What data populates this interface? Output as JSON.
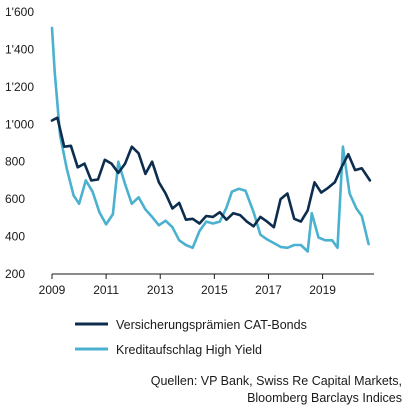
{
  "chart_data": {
    "type": "line",
    "ylim": [
      200,
      1600
    ],
    "xlim": [
      2009.0,
      2020.9
    ],
    "y_ticks": [
      {
        "value": 200,
        "label": "200"
      },
      {
        "value": 400,
        "label": "400"
      },
      {
        "value": 600,
        "label": "600"
      },
      {
        "value": 800,
        "label": "800"
      },
      {
        "value": 1000,
        "label": "1'000"
      },
      {
        "value": 1200,
        "label": "1'200"
      },
      {
        "value": 1400,
        "label": "1'400"
      },
      {
        "value": 1600,
        "label": "1'600"
      }
    ],
    "x_ticks": [
      {
        "value": 2009,
        "label": "2009"
      },
      {
        "value": 2011,
        "label": "2011"
      },
      {
        "value": 2013,
        "label": "2013"
      },
      {
        "value": 2015,
        "label": "2015"
      },
      {
        "value": 2017,
        "label": "2017"
      },
      {
        "value": 2019,
        "label": "2019"
      }
    ],
    "grid": false,
    "legend_position": "bottom",
    "series": [
      {
        "name": "Versicherungsprämien CAT-Bonds",
        "color": "#0d2d4e",
        "points": [
          [
            2009.0,
            1020
          ],
          [
            2009.2,
            1035
          ],
          [
            2009.45,
            880
          ],
          [
            2009.7,
            885
          ],
          [
            2009.95,
            770
          ],
          [
            2010.2,
            790
          ],
          [
            2010.45,
            700
          ],
          [
            2010.7,
            705
          ],
          [
            2010.95,
            810
          ],
          [
            2011.2,
            790
          ],
          [
            2011.45,
            740
          ],
          [
            2011.7,
            790
          ],
          [
            2011.95,
            880
          ],
          [
            2012.2,
            845
          ],
          [
            2012.45,
            735
          ],
          [
            2012.7,
            800
          ],
          [
            2012.95,
            690
          ],
          [
            2013.2,
            630
          ],
          [
            2013.45,
            550
          ],
          [
            2013.7,
            580
          ],
          [
            2013.95,
            490
          ],
          [
            2014.2,
            495
          ],
          [
            2014.45,
            470
          ],
          [
            2014.7,
            510
          ],
          [
            2014.95,
            505
          ],
          [
            2015.2,
            530
          ],
          [
            2015.45,
            490
          ],
          [
            2015.7,
            525
          ],
          [
            2015.95,
            515
          ],
          [
            2016.2,
            480
          ],
          [
            2016.45,
            455
          ],
          [
            2016.7,
            505
          ],
          [
            2016.95,
            480
          ],
          [
            2017.2,
            450
          ],
          [
            2017.45,
            600
          ],
          [
            2017.7,
            630
          ],
          [
            2017.95,
            495
          ],
          [
            2018.2,
            480
          ],
          [
            2018.45,
            540
          ],
          [
            2018.7,
            690
          ],
          [
            2018.95,
            635
          ],
          [
            2019.2,
            660
          ],
          [
            2019.45,
            690
          ],
          [
            2019.7,
            770
          ],
          [
            2019.95,
            840
          ],
          [
            2020.2,
            755
          ],
          [
            2020.45,
            765
          ],
          [
            2020.75,
            700
          ]
        ]
      },
      {
        "name": "Kreditaufschlag High Yield",
        "color": "#4ab1cf",
        "points": [
          [
            2009.0,
            1515
          ],
          [
            2009.1,
            1280
          ],
          [
            2009.3,
            940
          ],
          [
            2009.55,
            760
          ],
          [
            2009.8,
            620
          ],
          [
            2010.0,
            575
          ],
          [
            2010.25,
            700
          ],
          [
            2010.5,
            640
          ],
          [
            2010.75,
            530
          ],
          [
            2011.0,
            465
          ],
          [
            2011.25,
            520
          ],
          [
            2011.45,
            800
          ],
          [
            2011.7,
            680
          ],
          [
            2011.95,
            575
          ],
          [
            2012.2,
            610
          ],
          [
            2012.45,
            545
          ],
          [
            2012.7,
            505
          ],
          [
            2012.95,
            460
          ],
          [
            2013.2,
            485
          ],
          [
            2013.45,
            450
          ],
          [
            2013.7,
            380
          ],
          [
            2013.95,
            355
          ],
          [
            2014.2,
            340
          ],
          [
            2014.45,
            430
          ],
          [
            2014.7,
            480
          ],
          [
            2014.95,
            470
          ],
          [
            2015.2,
            480
          ],
          [
            2015.45,
            555
          ],
          [
            2015.65,
            640
          ],
          [
            2015.9,
            655
          ],
          [
            2016.15,
            645
          ],
          [
            2016.45,
            530
          ],
          [
            2016.7,
            410
          ],
          [
            2016.95,
            385
          ],
          [
            2017.2,
            365
          ],
          [
            2017.45,
            345
          ],
          [
            2017.7,
            340
          ],
          [
            2017.95,
            355
          ],
          [
            2018.2,
            355
          ],
          [
            2018.45,
            320
          ],
          [
            2018.6,
            525
          ],
          [
            2018.85,
            395
          ],
          [
            2019.1,
            380
          ],
          [
            2019.35,
            380
          ],
          [
            2019.55,
            340
          ],
          [
            2019.75,
            880
          ],
          [
            2020.0,
            630
          ],
          [
            2020.25,
            550
          ],
          [
            2020.45,
            510
          ],
          [
            2020.7,
            360
          ]
        ]
      }
    ],
    "source": [
      "Quellen: VP Bank, Swiss Re Capital Markets,",
      "Bloomberg Barclays Indices"
    ]
  }
}
